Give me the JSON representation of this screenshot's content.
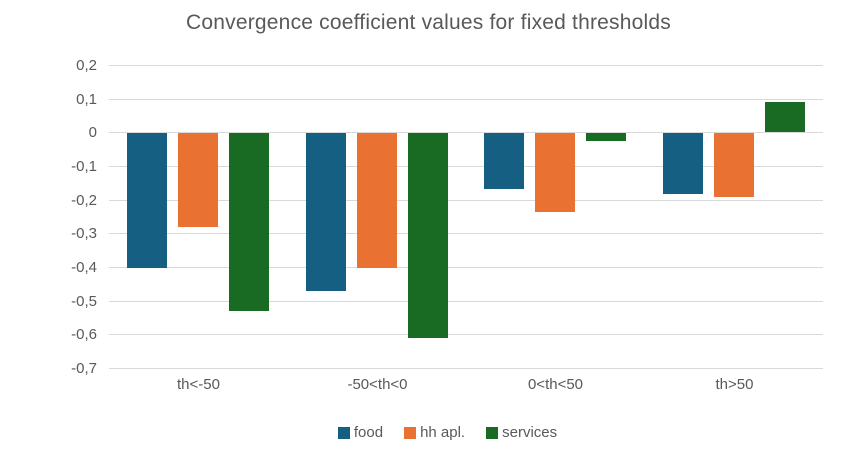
{
  "chart_data": {
    "type": "bar",
    "title": "Convergence coefficient values for fixed thresholds",
    "categories": [
      "th<-50",
      "-50<th<0",
      "0<th<50",
      "th>50"
    ],
    "series": [
      {
        "name": "food",
        "color": "#156082",
        "values": [
          -0.4,
          -0.47,
          -0.165,
          -0.18
        ]
      },
      {
        "name": "hh apl.",
        "color": "#E97132",
        "values": [
          -0.28,
          -0.4,
          -0.235,
          -0.19
        ]
      },
      {
        "name": "services",
        "color": "#196B24",
        "values": [
          -0.53,
          -0.61,
          -0.025,
          0.09
        ]
      }
    ],
    "ylim": [
      -0.7,
      0.2
    ],
    "ytick_step": 0.1,
    "yticks": [
      {
        "value": 0.2,
        "label": "0,2"
      },
      {
        "value": 0.1,
        "label": "0,1"
      },
      {
        "value": 0.0,
        "label": "0"
      },
      {
        "value": -0.1,
        "label": "-0,1"
      },
      {
        "value": -0.2,
        "label": "-0,2"
      },
      {
        "value": -0.3,
        "label": "-0,3"
      },
      {
        "value": -0.4,
        "label": "-0,4"
      },
      {
        "value": -0.5,
        "label": "-0,5"
      },
      {
        "value": -0.6,
        "label": "-0,6"
      },
      {
        "value": -0.7,
        "label": "-0,7"
      }
    ],
    "decimal_separator": ",",
    "xlabel": "",
    "ylabel": "",
    "grid": true,
    "legend_position": "bottom",
    "legend": [
      "food",
      "hh apl.",
      "services"
    ],
    "colors": {
      "title_text": "#595959",
      "axis_text": "#595959",
      "gridline": "#D9D9D9",
      "background": "#FFFFFF"
    }
  }
}
